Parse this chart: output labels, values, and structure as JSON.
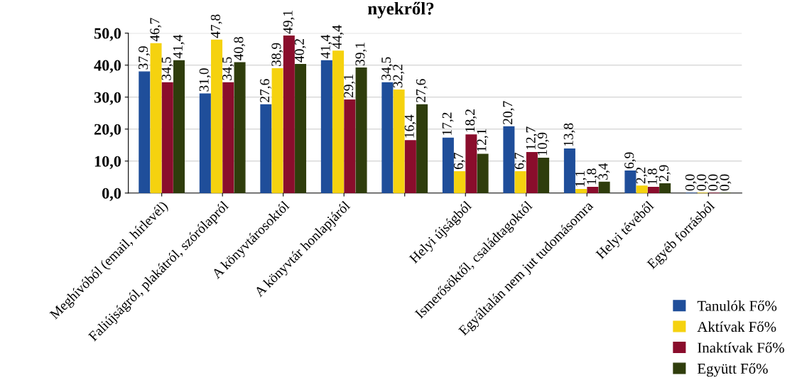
{
  "chart_data": {
    "type": "bar",
    "title": "nyekről?",
    "categories": [
      "Meghívóból (email, hírlevél)",
      "Faliújságról, plakátról, szórólapról",
      "A könyvtárosoktól",
      "A könyvtár honlapjáról",
      null,
      "Helyi újságból",
      "Ismerősöktől, családtagoktól",
      "Egyáltalán nem jut tudomásomra",
      "Helyi tévéből",
      "Egyéb forrásból"
    ],
    "series": [
      {
        "name": "Tanulók Fő%",
        "color": "#1f4e9a",
        "values": [
          37.9,
          31.0,
          27.6,
          41.4,
          34.5,
          17.2,
          20.7,
          13.8,
          6.9,
          0.0
        ],
        "value_labels": [
          "37,9",
          "31,0",
          "27,6",
          "41,4",
          "34,5",
          "17,2",
          "20,7",
          "13,8",
          "6,9",
          "0,0"
        ]
      },
      {
        "name": "Aktívak Fő%",
        "color": "#f5d20f",
        "values": [
          46.7,
          47.8,
          38.9,
          44.4,
          32.2,
          6.7,
          6.7,
          1.1,
          2.2,
          0.0
        ],
        "value_labels": [
          "46,7",
          "47,8",
          "38,9",
          "44,4",
          "32,2",
          "6,7",
          "6,7",
          "1,1",
          "2,2",
          "0,0"
        ]
      },
      {
        "name": "Inaktívak Fő%",
        "color": "#8a0d2c",
        "values": [
          34.5,
          34.5,
          49.1,
          29.1,
          16.4,
          18.2,
          12.7,
          1.8,
          1.8,
          0.0
        ],
        "value_labels": [
          "34,5",
          "34,5",
          "49,1",
          "29,1",
          "16,4",
          "18,2",
          "12,7",
          "1,8",
          "1,8",
          "0,0"
        ]
      },
      {
        "name": "Együtt Fő%",
        "color": "#2f3d0c",
        "values": [
          41.4,
          40.8,
          40.2,
          39.1,
          27.6,
          12.1,
          10.9,
          3.4,
          2.9,
          0.0
        ],
        "value_labels": [
          "41,4",
          "40,8",
          "40,2",
          "39,1",
          "27,6",
          "12,1",
          "10,9",
          "3,4",
          "2,9",
          "0,0"
        ]
      }
    ],
    "ylim": [
      0,
      50
    ],
    "yticks": [
      {
        "value": 0,
        "label": "0,0"
      },
      {
        "value": 10,
        "label": "10,0"
      },
      {
        "value": 20,
        "label": "20,0"
      },
      {
        "value": 30,
        "label": "30,0"
      },
      {
        "value": 40,
        "label": "40,0"
      },
      {
        "value": 50,
        "label": "50,0"
      }
    ],
    "grid": "y",
    "legend": "bottom right"
  }
}
